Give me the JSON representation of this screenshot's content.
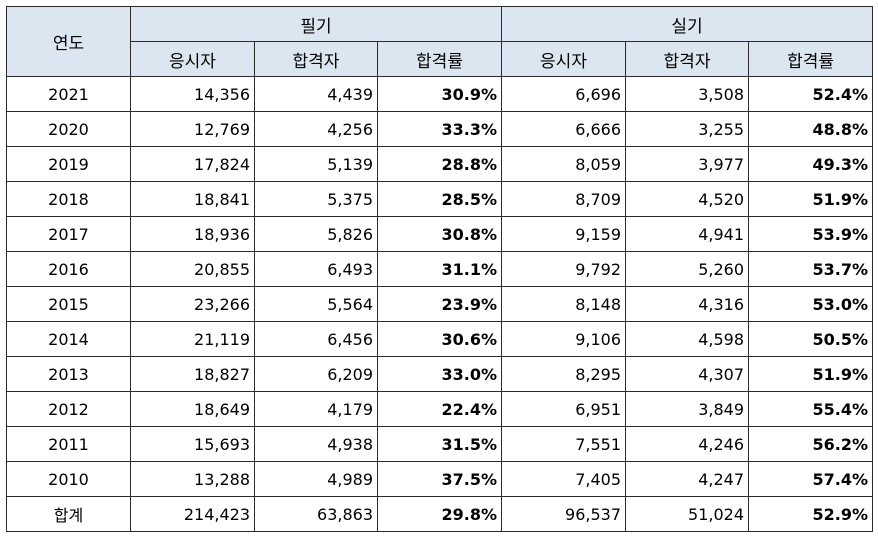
{
  "header": {
    "year_label": "연도",
    "group_written": "필기",
    "group_practical": "실기",
    "sub_applicants": "응시자",
    "sub_passers": "합격자",
    "sub_rate": "합격률"
  },
  "rows": [
    {
      "year": "2021",
      "w_app": "14,356",
      "w_pass": "4,439",
      "w_rate": "30.9%",
      "p_app": "6,696",
      "p_pass": "3,508",
      "p_rate": "52.4%"
    },
    {
      "year": "2020",
      "w_app": "12,769",
      "w_pass": "4,256",
      "w_rate": "33.3%",
      "p_app": "6,666",
      "p_pass": "3,255",
      "p_rate": "48.8%"
    },
    {
      "year": "2019",
      "w_app": "17,824",
      "w_pass": "5,139",
      "w_rate": "28.8%",
      "p_app": "8,059",
      "p_pass": "3,977",
      "p_rate": "49.3%"
    },
    {
      "year": "2018",
      "w_app": "18,841",
      "w_pass": "5,375",
      "w_rate": "28.5%",
      "p_app": "8,709",
      "p_pass": "4,520",
      "p_rate": "51.9%"
    },
    {
      "year": "2017",
      "w_app": "18,936",
      "w_pass": "5,826",
      "w_rate": "30.8%",
      "p_app": "9,159",
      "p_pass": "4,941",
      "p_rate": "53.9%"
    },
    {
      "year": "2016",
      "w_app": "20,855",
      "w_pass": "6,493",
      "w_rate": "31.1%",
      "p_app": "9,792",
      "p_pass": "5,260",
      "p_rate": "53.7%"
    },
    {
      "year": "2015",
      "w_app": "23,266",
      "w_pass": "5,564",
      "w_rate": "23.9%",
      "p_app": "8,148",
      "p_pass": "4,316",
      "p_rate": "53.0%"
    },
    {
      "year": "2014",
      "w_app": "21,119",
      "w_pass": "6,456",
      "w_rate": "30.6%",
      "p_app": "9,106",
      "p_pass": "4,598",
      "p_rate": "50.5%"
    },
    {
      "year": "2013",
      "w_app": "18,827",
      "w_pass": "6,209",
      "w_rate": "33.0%",
      "p_app": "8,295",
      "p_pass": "4,307",
      "p_rate": "51.9%"
    },
    {
      "year": "2012",
      "w_app": "18,649",
      "w_pass": "4,179",
      "w_rate": "22.4%",
      "p_app": "6,951",
      "p_pass": "3,849",
      "p_rate": "55.4%"
    },
    {
      "year": "2011",
      "w_app": "15,693",
      "w_pass": "4,938",
      "w_rate": "31.5%",
      "p_app": "7,551",
      "p_pass": "4,246",
      "p_rate": "56.2%"
    },
    {
      "year": "2010",
      "w_app": "13,288",
      "w_pass": "4,989",
      "w_rate": "37.5%",
      "p_app": "7,405",
      "p_pass": "4,247",
      "p_rate": "57.4%"
    }
  ],
  "total": {
    "year": "합계",
    "w_app": "214,423",
    "w_pass": "63,863",
    "w_rate": "29.8%",
    "p_app": "96,537",
    "p_pass": "51,024",
    "p_rate": "52.9%"
  },
  "colors": {
    "header_bg": "#dce6f1",
    "border": "#2b2b2b",
    "text": "#000000"
  }
}
